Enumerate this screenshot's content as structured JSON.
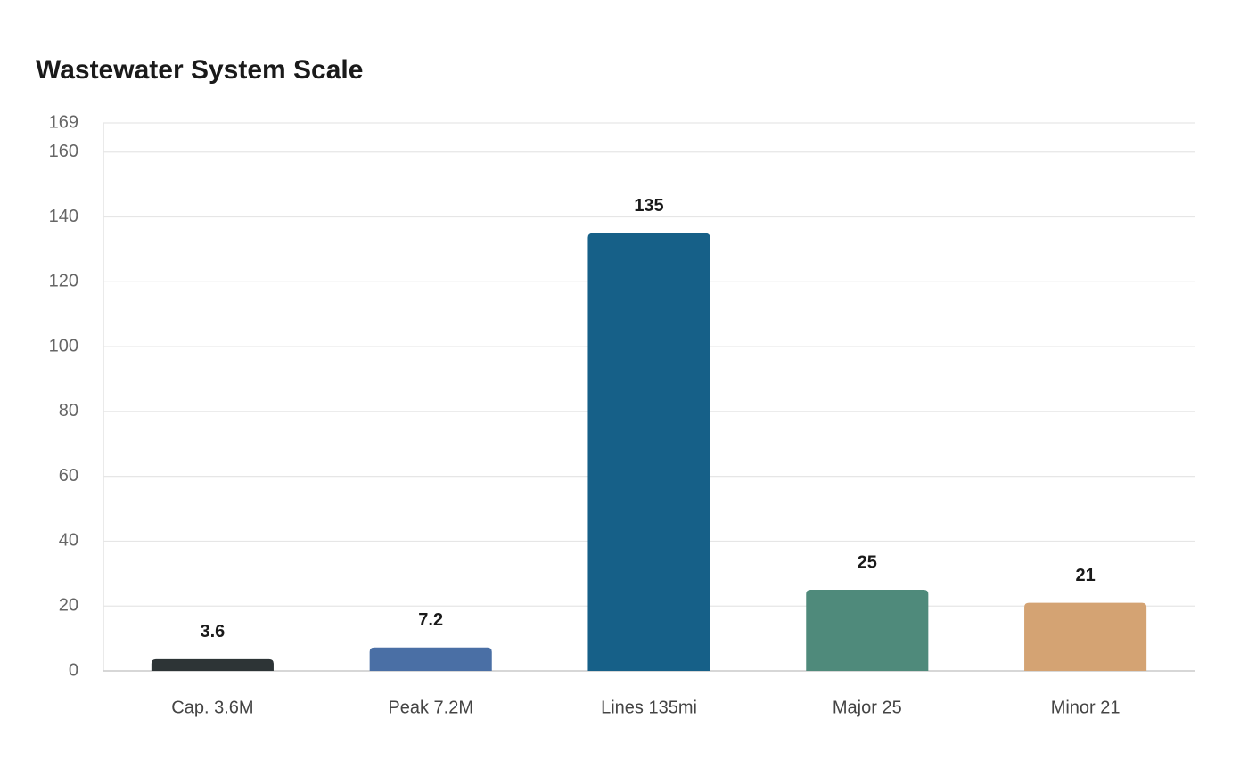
{
  "chart_data": {
    "type": "bar",
    "title": "Wastewater System Scale",
    "categories": [
      "Cap. 3.6M",
      "Peak 7.2M",
      "Lines 135mi",
      "Major 25",
      "Minor 21"
    ],
    "values": [
      3.6,
      7.2,
      135,
      25,
      21
    ],
    "colors": [
      "#2d3436",
      "#4a6fa5",
      "#166088",
      "#4f8a7b",
      "#d4a373"
    ],
    "ylim": [
      0,
      169
    ],
    "yticks": [
      0,
      20,
      40,
      60,
      80,
      100,
      120,
      140,
      160,
      169
    ],
    "grid": true
  }
}
